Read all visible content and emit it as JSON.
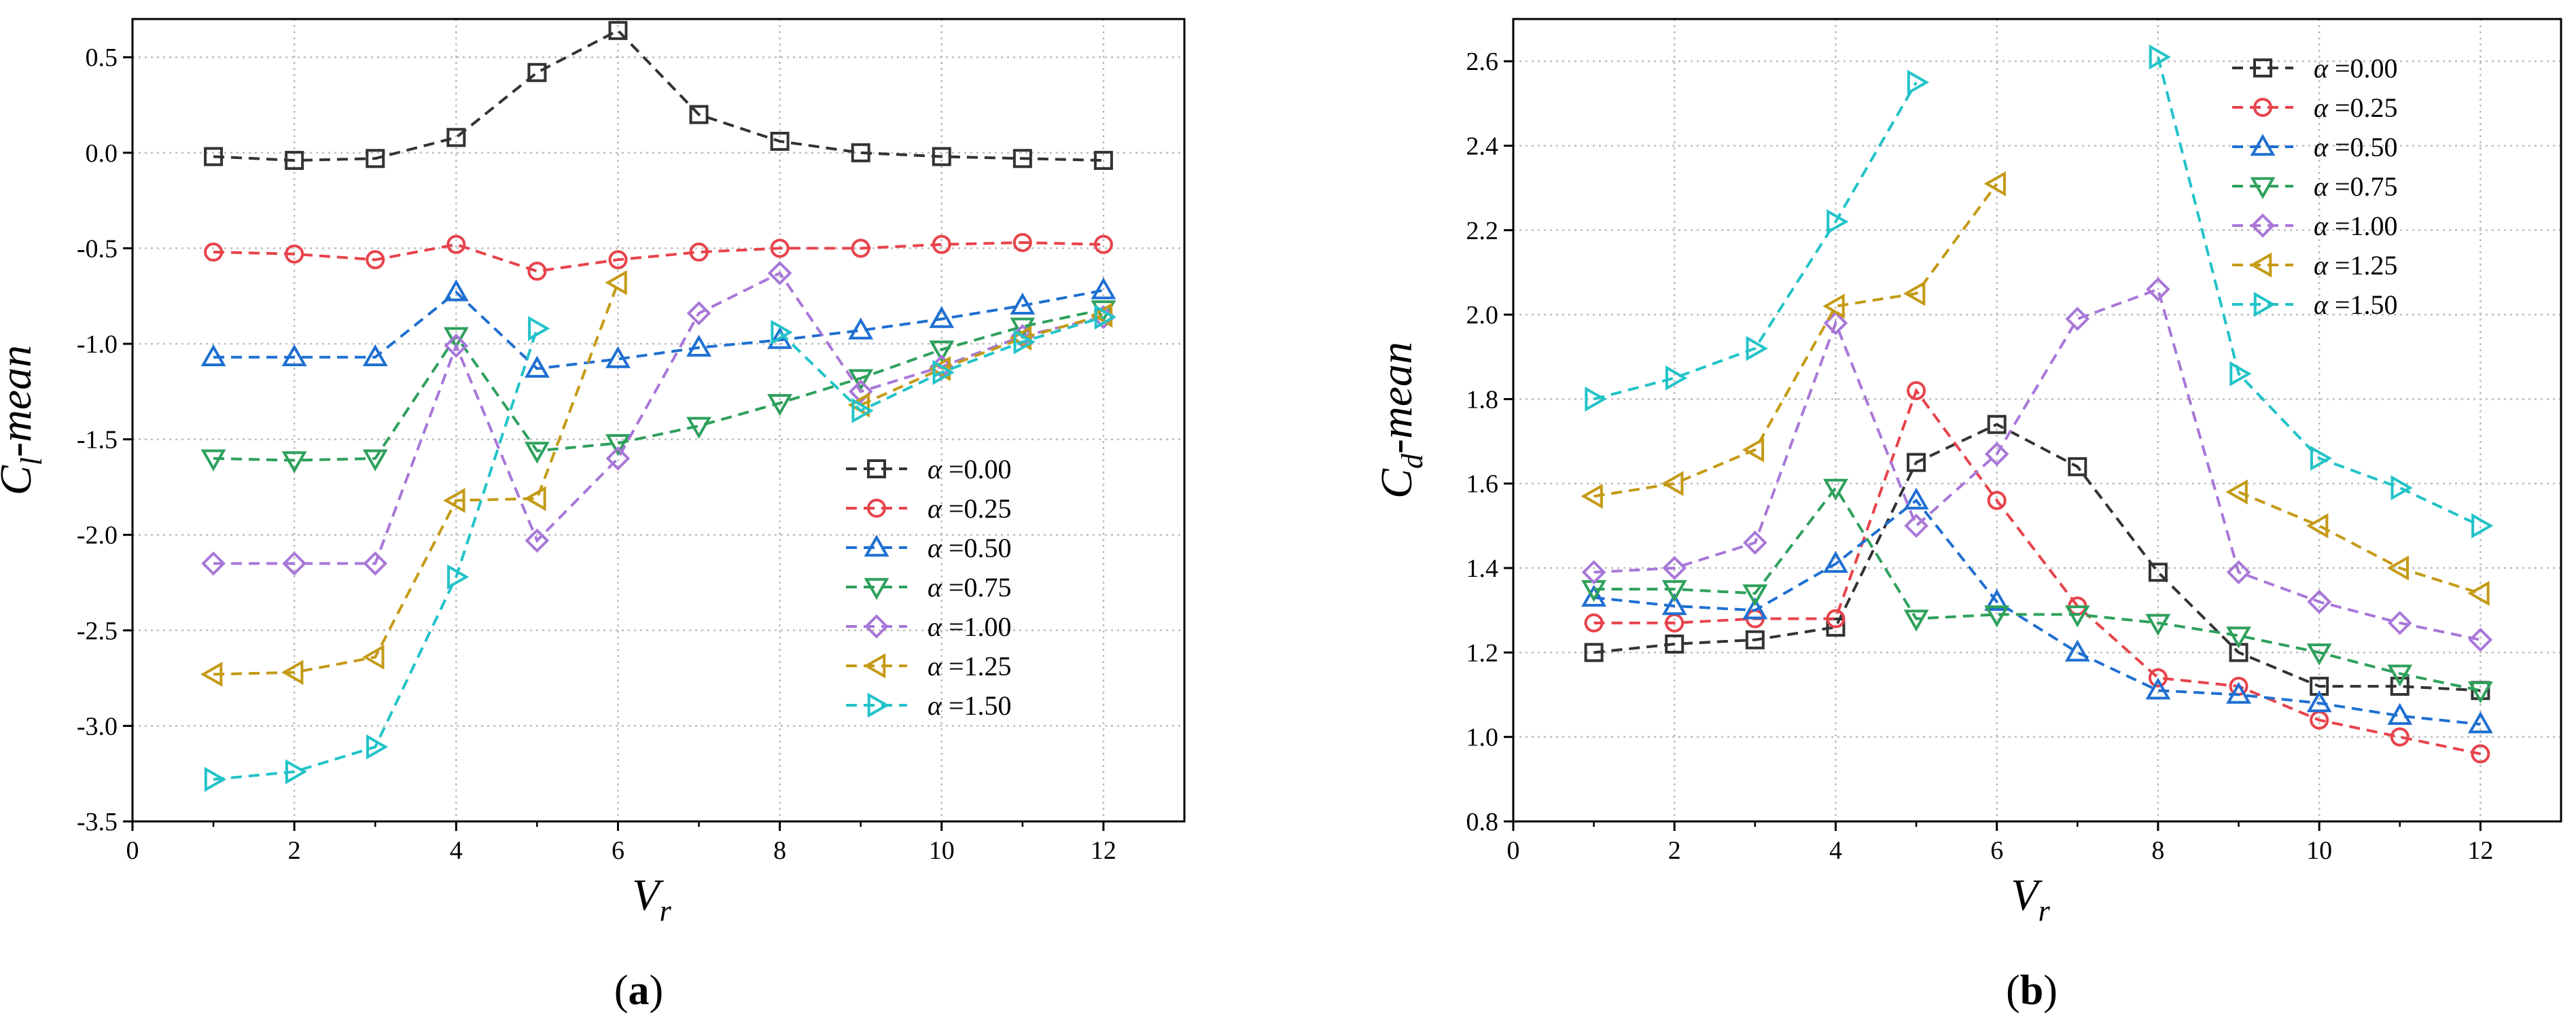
{
  "chart_data": [
    {
      "type": "line",
      "panel_label": "(a)",
      "title": "",
      "xlabel": "V",
      "xlabel_sub": "r",
      "ylabel": "C",
      "ylabel_sub": "l",
      "ylabel_suffix": "-mean",
      "xlim": [
        0,
        13
      ],
      "ylim": [
        -3.5,
        0.7
      ],
      "xticks": [
        0,
        2,
        4,
        6,
        8,
        10,
        12
      ],
      "yticks": [
        -3.5,
        -3.0,
        -2.5,
        -2.0,
        -1.5,
        -1.0,
        -0.5,
        0.0,
        0.5
      ],
      "ytick_labels": [
        "-3.5",
        "-3.0",
        "-2.5",
        "-2.0",
        "-1.5",
        "-1.0",
        "-0.5",
        "0.0",
        "0.5"
      ],
      "grid": true,
      "legend_position": "bottom-right",
      "x": [
        1,
        2,
        3,
        4,
        5,
        6,
        7,
        8,
        9,
        10,
        11,
        12
      ],
      "series": [
        {
          "name": "α =0.00",
          "symbol": "α",
          "suffix": " =0.00",
          "color": "#333333",
          "marker": "square",
          "values": [
            -0.02,
            -0.04,
            -0.03,
            0.08,
            0.42,
            0.64,
            0.2,
            0.06,
            0.0,
            -0.02,
            -0.03,
            -0.04
          ]
        },
        {
          "name": "α =0.25",
          "symbol": "α",
          "suffix": " =0.25",
          "color": "#e8434b",
          "marker": "circle",
          "values": [
            -0.52,
            -0.53,
            -0.56,
            -0.48,
            -0.62,
            -0.56,
            -0.52,
            -0.5,
            -0.5,
            -0.48,
            -0.47,
            -0.48
          ]
        },
        {
          "name": "α =0.50",
          "symbol": "α",
          "suffix": " =0.50",
          "color": "#1f6fd1",
          "marker": "triangle-up",
          "values": [
            -1.07,
            -1.07,
            -1.07,
            -0.73,
            -1.13,
            -1.08,
            -1.02,
            -0.98,
            -0.93,
            -0.87,
            -0.8,
            -0.72
          ]
        },
        {
          "name": "α =0.75",
          "symbol": "α",
          "suffix": " =0.75",
          "color": "#2ea05c",
          "marker": "triangle-down",
          "values": [
            -1.6,
            -1.61,
            -1.6,
            -0.96,
            -1.56,
            -1.52,
            -1.43,
            -1.31,
            -1.18,
            -1.03,
            -0.91,
            -0.82
          ]
        },
        {
          "name": "α =1.00",
          "symbol": "α",
          "suffix": " =1.00",
          "color": "#a877d8",
          "marker": "diamond",
          "values": [
            -2.15,
            -2.15,
            -2.15,
            -1.01,
            -2.03,
            -1.6,
            -0.84,
            -0.63,
            -1.25,
            -1.12,
            -0.96,
            -0.86
          ]
        },
        {
          "name": "α =1.25",
          "symbol": "α",
          "suffix": " =1.25",
          "color": "#c49a16",
          "marker": "triangle-left",
          "values": [
            -2.73,
            -2.72,
            -2.64,
            -1.82,
            -1.81,
            -0.68,
            null,
            null,
            -1.32,
            -1.13,
            -0.97,
            -0.85
          ]
        },
        {
          "name": "α =1.50",
          "symbol": "α",
          "suffix": " =1.50",
          "color": "#22c3c8",
          "marker": "triangle-right",
          "values": [
            -3.28,
            -3.24,
            -3.11,
            -2.22,
            -0.92,
            null,
            null,
            -0.94,
            -1.35,
            -1.15,
            -0.99,
            -0.86
          ]
        }
      ]
    },
    {
      "type": "line",
      "panel_label": "(b)",
      "title": "",
      "xlabel": "V",
      "xlabel_sub": "r",
      "ylabel": "C",
      "ylabel_sub": "d",
      "ylabel_suffix": "-mean",
      "xlim": [
        0,
        13
      ],
      "ylim": [
        0.8,
        2.7
      ],
      "xticks": [
        0,
        2,
        4,
        6,
        8,
        10,
        12
      ],
      "yticks": [
        0.8,
        1.0,
        1.2,
        1.4,
        1.6,
        1.8,
        2.0,
        2.2,
        2.4,
        2.6
      ],
      "ytick_labels": [
        "0.8",
        "1.0",
        "1.2",
        "1.4",
        "1.6",
        "1.8",
        "2.0",
        "2.2",
        "2.4",
        "2.6"
      ],
      "grid": true,
      "legend_position": "top-right",
      "x": [
        1,
        2,
        3,
        4,
        5,
        6,
        7,
        8,
        9,
        10,
        11,
        12
      ],
      "series": [
        {
          "name": "α =0.00",
          "symbol": "α",
          "suffix": " =0.00",
          "color": "#333333",
          "marker": "square",
          "values": [
            1.2,
            1.22,
            1.23,
            1.26,
            1.65,
            1.74,
            1.64,
            1.39,
            1.2,
            1.12,
            1.12,
            1.11
          ]
        },
        {
          "name": "α =0.25",
          "symbol": "α",
          "suffix": " =0.25",
          "color": "#e8434b",
          "marker": "circle",
          "values": [
            1.27,
            1.27,
            1.28,
            1.28,
            1.82,
            1.56,
            1.31,
            1.14,
            1.12,
            1.04,
            1.0,
            0.96
          ]
        },
        {
          "name": "α =0.50",
          "symbol": "α",
          "suffix": " =0.50",
          "color": "#1f6fd1",
          "marker": "triangle-up",
          "values": [
            1.33,
            1.31,
            1.3,
            1.41,
            1.56,
            1.32,
            1.2,
            1.11,
            1.1,
            1.08,
            1.05,
            1.03
          ]
        },
        {
          "name": "α =0.75",
          "symbol": "α",
          "suffix": " =0.75",
          "color": "#2ea05c",
          "marker": "triangle-down",
          "values": [
            1.35,
            1.35,
            1.34,
            1.59,
            1.28,
            1.29,
            1.29,
            1.27,
            1.24,
            1.2,
            1.15,
            1.11
          ]
        },
        {
          "name": "α =1.00",
          "symbol": "α",
          "suffix": " =1.00",
          "color": "#a877d8",
          "marker": "diamond",
          "values": [
            1.39,
            1.4,
            1.46,
            1.98,
            1.5,
            1.67,
            1.99,
            2.06,
            1.39,
            1.32,
            1.27,
            1.23
          ]
        },
        {
          "name": "α =1.25",
          "symbol": "α",
          "suffix": " =1.25",
          "color": "#c49a16",
          "marker": "triangle-left",
          "values": [
            1.57,
            1.6,
            1.68,
            2.02,
            2.05,
            2.31,
            null,
            null,
            1.58,
            1.5,
            1.4,
            1.34
          ]
        },
        {
          "name": "α =1.50",
          "symbol": "α",
          "suffix": " =1.50",
          "color": "#22c3c8",
          "marker": "triangle-right",
          "values": [
            1.8,
            1.85,
            1.92,
            2.22,
            2.55,
            null,
            null,
            2.61,
            1.86,
            1.66,
            1.59,
            1.5
          ]
        }
      ]
    }
  ]
}
